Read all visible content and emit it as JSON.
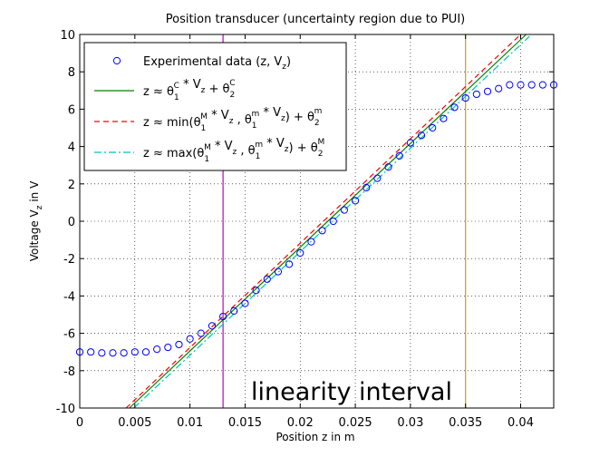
{
  "chart_data": {
    "type": "scatter",
    "title": "Position transducer (uncertainty region due to PUI)",
    "xlabel": "Position z in m",
    "ylabel": "Voltage V_z in V",
    "xlim": [
      0,
      0.043
    ],
    "ylim": [
      -10,
      10
    ],
    "xticks": [
      0,
      0.005,
      0.01,
      0.015,
      0.02,
      0.025,
      0.03,
      0.035,
      0.04
    ],
    "xtick_labels": [
      "0",
      "0.005",
      "0.01",
      "0.015",
      "0.02",
      "0.025",
      "0.03",
      "0.035",
      "0.04"
    ],
    "yticks": [
      -10,
      -8,
      -6,
      -4,
      -2,
      0,
      2,
      4,
      6,
      8,
      10
    ],
    "ytick_labels": [
      "-10",
      "-8",
      "-6",
      "-4",
      "-2",
      "0",
      "2",
      "4",
      "6",
      "8",
      "10"
    ],
    "grid": true,
    "legend_position": "top-left",
    "annotation": "linearity interval",
    "vlines": [
      {
        "x": 0.013,
        "color": "#bf00bf"
      },
      {
        "x": 0.035,
        "color": "#d4a000"
      }
    ],
    "series": [
      {
        "name": "Experimental data (z, V_z)",
        "kind": "markers",
        "color": "#0000ff",
        "x": [
          0,
          0.001,
          0.002,
          0.003,
          0.004,
          0.005,
          0.006,
          0.007,
          0.008,
          0.009,
          0.01,
          0.011,
          0.012,
          0.013,
          0.014,
          0.015,
          0.016,
          0.017,
          0.018,
          0.019,
          0.02,
          0.021,
          0.022,
          0.023,
          0.024,
          0.025,
          0.026,
          0.027,
          0.028,
          0.029,
          0.03,
          0.031,
          0.032,
          0.033,
          0.034,
          0.035,
          0.036,
          0.037,
          0.038,
          0.039,
          0.04,
          0.041,
          0.042,
          0.043
        ],
        "y": [
          -7.0,
          -7.0,
          -7.05,
          -7.05,
          -7.05,
          -7.0,
          -7.0,
          -6.85,
          -6.75,
          -6.6,
          -6.3,
          -6.0,
          -5.6,
          -5.1,
          -4.8,
          -4.4,
          -3.7,
          -3.1,
          -2.7,
          -2.3,
          -1.7,
          -1.1,
          -0.5,
          0.0,
          0.6,
          1.1,
          1.8,
          2.3,
          2.9,
          3.5,
          4.2,
          4.6,
          5.0,
          5.5,
          6.1,
          6.6,
          6.8,
          6.95,
          7.1,
          7.3,
          7.3,
          7.3,
          7.3,
          7.3
        ]
      },
      {
        "name": "z ≈ θ₁ᶜ * V_z + θ₂ᶜ",
        "legend_parts": [
          "z ≈ θ",
          "1",
          "C",
          " * V",
          "z",
          " + θ",
          "2",
          "C"
        ],
        "kind": "line",
        "color": "#008000",
        "dash": "solid",
        "x": [
          0.0045,
          0.0405
        ],
        "y": [
          -10,
          10.0
        ]
      },
      {
        "name": "z ≈ min(θ₁ᴹ * V_z , θ₁ᵐ * V_z) + θ₂ᵐ",
        "legend_parts": [
          "z ≈ min(θ",
          "1",
          "M",
          " * V",
          "z",
          " , θ",
          "1",
          "m",
          " * V",
          "z",
          ") + θ",
          "2",
          "m"
        ],
        "kind": "line",
        "color": "#ff0000",
        "dash": "dashed",
        "x": [
          0.0042,
          0.04
        ],
        "y": [
          -10,
          10.0
        ]
      },
      {
        "name": "z ≈ max(θ₁ᴹ * V_z , θ₁ᵐ * V_z) + θ₂ᴹ",
        "legend_parts": [
          "z ≈ max(θ",
          "1",
          "M",
          " * V",
          "z",
          " , θ",
          "1",
          "m",
          " * V",
          "z",
          ") + θ",
          "2",
          "M"
        ],
        "kind": "line",
        "color": "#00bfbf",
        "dash": "dashdot",
        "x": [
          0.0049,
          0.0408
        ],
        "y": [
          -10,
          9.9
        ]
      }
    ]
  }
}
